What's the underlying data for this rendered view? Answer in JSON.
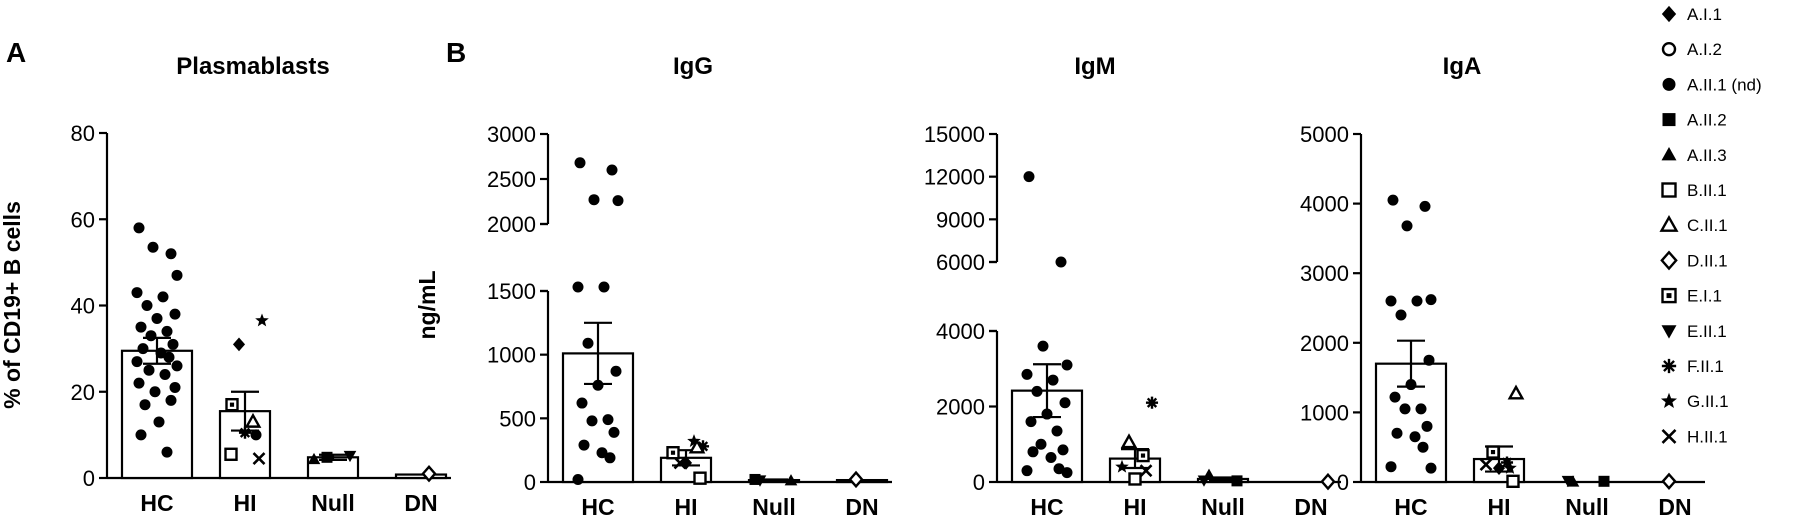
{
  "panel_labels": [
    "A",
    "B"
  ],
  "legend": {
    "entries": [
      {
        "label": "A.I.1",
        "marker": "diamond-filled"
      },
      {
        "label": "A.I.2",
        "marker": "circle-open"
      },
      {
        "label": "A.II.1 (nd)",
        "marker": "circle-filled"
      },
      {
        "label": "A.II.2",
        "marker": "square-filled"
      },
      {
        "label": "A.II.3",
        "marker": "triangle-up-filled"
      },
      {
        "label": "B.II.1",
        "marker": "square-open"
      },
      {
        "label": "C.II.1",
        "marker": "triangle-up-open"
      },
      {
        "label": "D.II.1",
        "marker": "diamond-open"
      },
      {
        "label": "E.I.1",
        "marker": "square-dot"
      },
      {
        "label": "E.II.1",
        "marker": "triangle-down-filled"
      },
      {
        "label": "F.II.1",
        "marker": "asterisk"
      },
      {
        "label": "G.II.1",
        "marker": "star-filled"
      },
      {
        "label": "H.II.1",
        "marker": "x-cross"
      }
    ]
  },
  "chart_data": [
    {
      "type": "bar",
      "panel": "A",
      "title": "Plasmablasts",
      "ylabel": "% of CD19+ B cells",
      "xlabel": "",
      "categories": [
        "HC",
        "HI",
        "Null",
        "DN"
      ],
      "yticks": [
        "0",
        "20",
        "40",
        "60",
        "80"
      ],
      "ylim": [
        0,
        80
      ],
      "y_break": null,
      "grid": false,
      "bars": [
        {
          "category": "HC",
          "mean": 29.5,
          "sem": 3.0
        },
        {
          "category": "HI",
          "mean": 15.5,
          "sem": 4.5
        },
        {
          "category": "Null",
          "mean": 4.8,
          "sem": 0.6
        },
        {
          "category": "DN",
          "mean": 0.8,
          "sem": 0
        }
      ],
      "points": [
        {
          "category": "HC",
          "marker": "circle-filled",
          "values": [
            58,
            52,
            53.5,
            47,
            43,
            42,
            40,
            38,
            37,
            35,
            34,
            33,
            31,
            30,
            29,
            28,
            27,
            26,
            25,
            24,
            22,
            21,
            20,
            18,
            17,
            13,
            10,
            6
          ]
        },
        {
          "category": "HI",
          "marker": "star-filled",
          "values": [
            36.5
          ]
        },
        {
          "category": "HI",
          "marker": "diamond-filled",
          "values": [
            31
          ]
        },
        {
          "category": "HI",
          "marker": "triangle-up-open",
          "values": [
            13
          ]
        },
        {
          "category": "HI",
          "marker": "square-dot",
          "values": [
            17
          ]
        },
        {
          "category": "HI",
          "marker": "circle-filled",
          "values": [
            10
          ]
        },
        {
          "category": "HI",
          "marker": "asterisk",
          "values": [
            10.5
          ]
        },
        {
          "category": "HI",
          "marker": "x-cross",
          "values": [
            4.5
          ]
        },
        {
          "category": "HI",
          "marker": "square-open",
          "values": [
            5.5
          ]
        },
        {
          "category": "Null",
          "marker": "triangle-up-filled",
          "values": [
            4.3
          ]
        },
        {
          "category": "Null",
          "marker": "triangle-down-filled",
          "values": [
            5.2
          ]
        },
        {
          "category": "Null",
          "marker": "square-filled",
          "values": [
            4.8
          ]
        },
        {
          "category": "DN",
          "marker": "diamond-open",
          "values": [
            1
          ]
        }
      ]
    },
    {
      "type": "bar",
      "panel": "B",
      "title": "IgG",
      "ylabel": "ng/mL",
      "xlabel": "",
      "categories": [
        "HC",
        "HI",
        "Null",
        "DN"
      ],
      "yticks": [
        "0",
        "500",
        "1000",
        "1500",
        "2000",
        "2500",
        "3000"
      ],
      "ylim": [
        0,
        3000
      ],
      "y_break": [
        1600,
        1750
      ],
      "grid": false,
      "bars": [
        {
          "category": "HC",
          "mean": 1010,
          "sem": 240
        },
        {
          "category": "HI",
          "mean": 190,
          "sem": 60
        },
        {
          "category": "Null",
          "mean": 15,
          "sem": 5
        },
        {
          "category": "DN",
          "mean": 15,
          "sem": 0
        }
      ],
      "points": [
        {
          "category": "HC",
          "marker": "circle-filled",
          "values": [
            2680,
            2600,
            2270,
            2260,
            1820,
            1540,
            1090,
            870,
            760,
            620,
            490,
            480,
            390,
            290,
            230,
            190,
            20
          ]
        },
        {
          "category": "HI",
          "marker": "asterisk",
          "values": [
            280
          ]
        },
        {
          "category": "HI",
          "marker": "x-cross",
          "values": [
            150
          ]
        },
        {
          "category": "HI",
          "marker": "star-filled",
          "values": [
            320
          ]
        },
        {
          "category": "HI",
          "marker": "square-dot",
          "values": [
            230
          ]
        },
        {
          "category": "HI",
          "marker": "triangle-up-open",
          "values": [
            270
          ]
        },
        {
          "category": "HI",
          "marker": "diamond-filled",
          "values": [
            150
          ]
        },
        {
          "category": "HI",
          "marker": "square-open",
          "values": [
            30
          ]
        },
        {
          "category": "Null",
          "marker": "triangle-down-filled",
          "values": [
            15
          ]
        },
        {
          "category": "Null",
          "marker": "square-filled",
          "values": [
            20
          ]
        },
        {
          "category": "Null",
          "marker": "triangle-up-filled",
          "values": [
            10
          ]
        },
        {
          "category": "DN",
          "marker": "diamond-open",
          "values": [
            20
          ]
        }
      ]
    },
    {
      "type": "bar",
      "panel": "B",
      "title": "IgM",
      "ylabel": "",
      "xlabel": "",
      "categories": [
        "HC",
        "HI",
        "Null",
        "DN"
      ],
      "yticks": [
        "0",
        "2000",
        "4000",
        "6000",
        "9000",
        "12000",
        "15000"
      ],
      "ylim": [
        0,
        15000
      ],
      "y_break": [
        5000,
        6000
      ],
      "grid": false,
      "bars": [
        {
          "category": "HC",
          "mean": 2420,
          "sem": 700
        },
        {
          "category": "HI",
          "mean": 620,
          "sem": 250
        },
        {
          "category": "Null",
          "mean": 80,
          "sem": 40
        },
        {
          "category": "DN",
          "mean": 0,
          "sem": 0
        }
      ],
      "points": [
        {
          "category": "HC",
          "marker": "circle-filled",
          "values": [
            12000,
            6000,
            3600,
            3100,
            2850,
            2700,
            2400,
            2100,
            1800,
            1600,
            1350,
            1000,
            850,
            800,
            650,
            350,
            300,
            250
          ]
        },
        {
          "category": "HI",
          "marker": "asterisk",
          "values": [
            2100
          ]
        },
        {
          "category": "HI",
          "marker": "triangle-up-open",
          "values": [
            1050
          ]
        },
        {
          "category": "HI",
          "marker": "square-dot",
          "values": [
            700
          ]
        },
        {
          "category": "HI",
          "marker": "star-filled",
          "values": [
            400
          ]
        },
        {
          "category": "HI",
          "marker": "x-cross",
          "values": [
            300
          ]
        },
        {
          "category": "HI",
          "marker": "square-open",
          "values": [
            80
          ]
        },
        {
          "category": "Null",
          "marker": "square-filled",
          "values": [
            30
          ]
        },
        {
          "category": "Null",
          "marker": "triangle-up-filled",
          "values": [
            180
          ]
        },
        {
          "category": "Null",
          "marker": "triangle-down-filled",
          "values": [
            50
          ]
        },
        {
          "category": "DN",
          "marker": "diamond-open",
          "values": [
            10
          ]
        }
      ]
    },
    {
      "type": "bar",
      "panel": "B",
      "title": "IgA",
      "ylabel": "",
      "xlabel": "",
      "categories": [
        "HC",
        "HI",
        "Null",
        "DN"
      ],
      "yticks": [
        "0",
        "1000",
        "2000",
        "3000",
        "4000",
        "5000"
      ],
      "ylim": [
        0,
        5000
      ],
      "y_break": null,
      "grid": false,
      "bars": [
        {
          "category": "HC",
          "mean": 1700,
          "sem": 330
        },
        {
          "category": "HI",
          "mean": 330,
          "sem": 180
        },
        {
          "category": "Null",
          "mean": 0,
          "sem": 0
        },
        {
          "category": "DN",
          "mean": 0,
          "sem": 0
        }
      ],
      "points": [
        {
          "category": "HC",
          "marker": "circle-filled",
          "values": [
            4050,
            3960,
            3680,
            2620,
            2600,
            2600,
            2400,
            1750,
            1400,
            1220,
            1050,
            1050,
            800,
            700,
            650,
            500,
            220,
            200
          ]
        },
        {
          "category": "HI",
          "marker": "triangle-up-open",
          "values": [
            1270
          ]
        },
        {
          "category": "HI",
          "marker": "square-dot",
          "values": [
            430
          ]
        },
        {
          "category": "HI",
          "marker": "asterisk",
          "values": [
            280
          ]
        },
        {
          "category": "HI",
          "marker": "x-cross",
          "values": [
            250
          ]
        },
        {
          "category": "HI",
          "marker": "star-filled",
          "values": [
            200
          ]
        },
        {
          "category": "HI",
          "marker": "diamond-filled",
          "values": [
            200
          ]
        },
        {
          "category": "HI",
          "marker": "square-open",
          "values": [
            10
          ]
        },
        {
          "category": "Null",
          "marker": "triangle-up-filled",
          "values": [
            0
          ]
        },
        {
          "category": "Null",
          "marker": "triangle-down-filled",
          "values": [
            20
          ]
        },
        {
          "category": "Null",
          "marker": "square-filled",
          "values": [
            10
          ]
        },
        {
          "category": "DN",
          "marker": "diamond-open",
          "values": [
            10
          ]
        }
      ]
    }
  ]
}
